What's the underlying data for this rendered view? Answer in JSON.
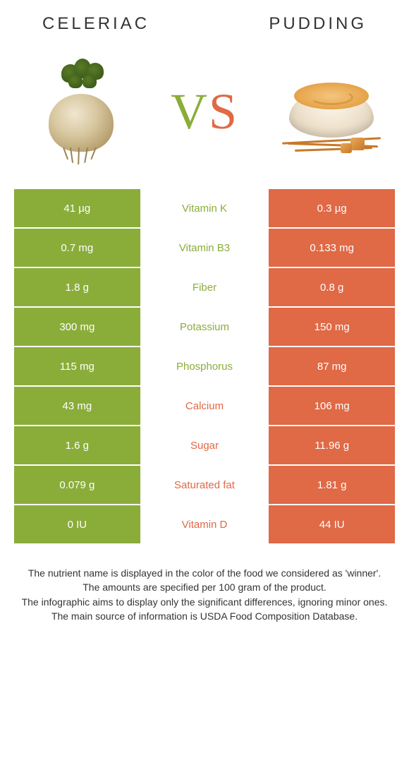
{
  "left_food": {
    "name": "CELERIAC"
  },
  "right_food": {
    "name": "PUDDING"
  },
  "vs": {
    "v": "V",
    "s": "S"
  },
  "colors": {
    "green": "#8aad3a",
    "orange": "#e06946",
    "text": "#333333"
  },
  "rows": [
    {
      "left": "41 µg",
      "nutrient": "Vitamin K",
      "right": "0.3 µg",
      "winner": "green"
    },
    {
      "left": "0.7 mg",
      "nutrient": "Vitamin B3",
      "right": "0.133 mg",
      "winner": "green"
    },
    {
      "left": "1.8 g",
      "nutrient": "Fiber",
      "right": "0.8 g",
      "winner": "green"
    },
    {
      "left": "300 mg",
      "nutrient": "Potassium",
      "right": "150 mg",
      "winner": "green"
    },
    {
      "left": "115 mg",
      "nutrient": "Phosphorus",
      "right": "87 mg",
      "winner": "green"
    },
    {
      "left": "43 mg",
      "nutrient": "Calcium",
      "right": "106 mg",
      "winner": "orange"
    },
    {
      "left": "1.6 g",
      "nutrient": "Sugar",
      "right": "11.96 g",
      "winner": "orange"
    },
    {
      "left": "0.079 g",
      "nutrient": "Saturated fat",
      "right": "1.81 g",
      "winner": "orange"
    },
    {
      "left": "0 IU",
      "nutrient": "Vitamin D",
      "right": "44 IU",
      "winner": "orange"
    }
  ],
  "footer": {
    "line1": "The nutrient name is displayed in the color of the food we considered as 'winner'.",
    "line2": "The amounts are specified per 100 gram of the product.",
    "line3": "The infographic aims to display only the significant differences, ignoring minor ones.",
    "line4": "The main source of information is USDA Food Composition Database."
  }
}
